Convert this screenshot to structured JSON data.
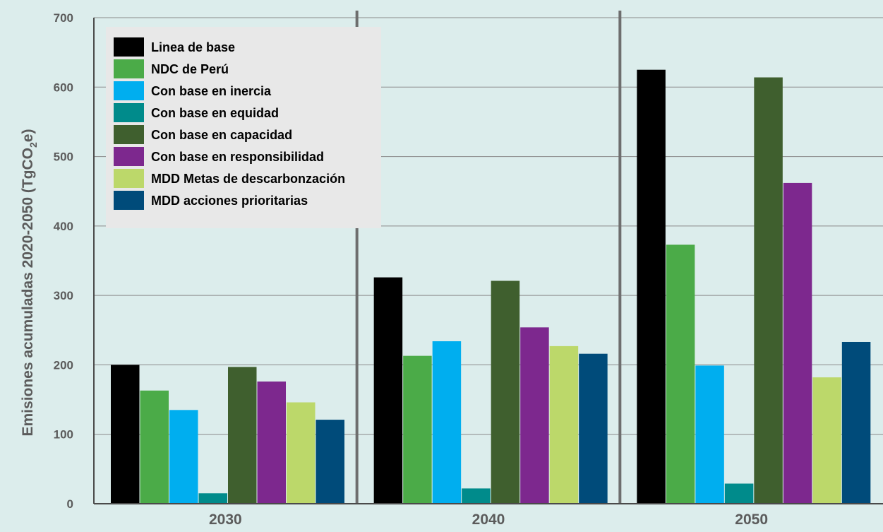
{
  "chart_data": {
    "type": "bar",
    "ylabel": "Emisiones acumuladas 2020-2050 (TgCO",
    "ylabel_sub": "2",
    "ylabel_end": "e)",
    "ylim": [
      0,
      700
    ],
    "y_ticks": [
      0,
      100,
      200,
      300,
      400,
      500,
      600,
      700
    ],
    "y_tick_labels": [
      "0",
      "100",
      "200",
      "300",
      "400",
      "500",
      "600",
      "700"
    ],
    "grid": true,
    "legend_position": "top-left",
    "categories": [
      "2030",
      "2040",
      "2050"
    ],
    "series": [
      {
        "name": "Linea de base",
        "color": "#000000",
        "values": [
          200,
          326,
          625
        ]
      },
      {
        "name": "NDC de Perú",
        "color": "#4bab48",
        "values": [
          163,
          213,
          373
        ]
      },
      {
        "name": "Con base en inercia",
        "color": "#00aeef",
        "values": [
          135,
          234,
          199
        ]
      },
      {
        "name": "Con base en equidad",
        "color": "#008b8b",
        "values": [
          15,
          22,
          29
        ]
      },
      {
        "name": "Con base en capacidad",
        "color": "#3f5f2e",
        "values": [
          197,
          321,
          614
        ]
      },
      {
        "name": "Con base en responsibilidad",
        "color": "#7d288e",
        "values": [
          176,
          254,
          462
        ]
      },
      {
        "name": "MDD Metas de descarbonzación",
        "color": "#bcd86a",
        "values": [
          146,
          227,
          182
        ]
      },
      {
        "name": "MDD acciones prioritarias",
        "color": "#004b7a",
        "values": [
          121,
          216,
          233
        ]
      }
    ]
  }
}
